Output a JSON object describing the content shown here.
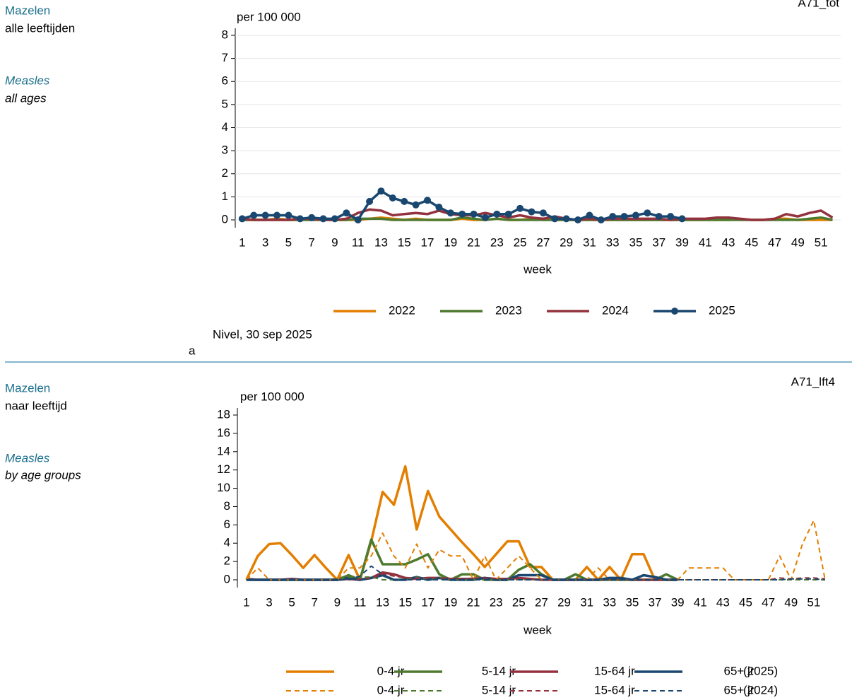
{
  "chart_data": [
    {
      "type": "line",
      "code": "A71_tot",
      "side_title_nl": "Mazelen",
      "side_subtitle_nl": "alle leeftijden",
      "side_title_en": "Measles",
      "side_subtitle_en": "all ages",
      "y_label": "per 100 000",
      "x_label": "week",
      "source": "Nivel, 30 sep 2025",
      "panel_label": "a",
      "grid": true,
      "x": [
        1,
        2,
        3,
        4,
        5,
        6,
        7,
        8,
        9,
        10,
        11,
        12,
        13,
        14,
        15,
        16,
        17,
        18,
        19,
        20,
        21,
        22,
        23,
        24,
        25,
        26,
        27,
        28,
        29,
        30,
        31,
        32,
        33,
        34,
        35,
        36,
        37,
        38,
        39,
        40,
        41,
        42,
        43,
        44,
        45,
        46,
        47,
        48,
        49,
        50,
        51,
        52
      ],
      "xlim": [
        0.4,
        52.7
      ],
      "xticks": [
        1,
        3,
        5,
        7,
        9,
        11,
        13,
        15,
        17,
        19,
        21,
        23,
        25,
        27,
        29,
        31,
        33,
        35,
        37,
        39,
        41,
        43,
        45,
        47,
        49,
        51
      ],
      "ylim": [
        0,
        8
      ],
      "yticks": [
        0,
        1,
        2,
        3,
        4,
        5,
        6,
        7,
        8
      ],
      "series": [
        {
          "name": "2022",
          "color": "#e37e00",
          "values": [
            0,
            0,
            0,
            0.05,
            0,
            0,
            0.05,
            0,
            0,
            0,
            0,
            0.05,
            0.1,
            0.05,
            0,
            0.05,
            0,
            0,
            0,
            0.05,
            0,
            0,
            0.05,
            0,
            0,
            0.05,
            0,
            0,
            0,
            0,
            0,
            0,
            0,
            0,
            0,
            0,
            0,
            0,
            0,
            0,
            0,
            0,
            0,
            0.05,
            0,
            0,
            0.05,
            0.05,
            0,
            0,
            0,
            0
          ]
        },
        {
          "name": "2023",
          "color": "#4e7a2f",
          "values": [
            0,
            0,
            0,
            0,
            0,
            0,
            0,
            0,
            0,
            0,
            0.05,
            0.05,
            0.05,
            0,
            0,
            0,
            0,
            0,
            0,
            0.1,
            0.05,
            0,
            0.05,
            0,
            0,
            0,
            0,
            0,
            0,
            0,
            0,
            0,
            0,
            0,
            0,
            0,
            0,
            0,
            0,
            0,
            0,
            0,
            0,
            0,
            0,
            0,
            0,
            0,
            0,
            0.05,
            0.1,
            0
          ]
        },
        {
          "name": "2024",
          "color": "#93323e",
          "values": [
            0.05,
            0,
            0,
            0,
            0,
            0.05,
            0.05,
            0,
            0,
            0.05,
            0.3,
            0.45,
            0.4,
            0.2,
            0.25,
            0.3,
            0.25,
            0.4,
            0.25,
            0.2,
            0.2,
            0.3,
            0.2,
            0.1,
            0.2,
            0.1,
            0.05,
            0.15,
            0.05,
            0,
            0.05,
            0,
            0.05,
            0.05,
            0.05,
            0.05,
            0.05,
            0,
            0.05,
            0.05,
            0.05,
            0.1,
            0.1,
            0.05,
            0,
            0,
            0.05,
            0.25,
            0.15,
            0.3,
            0.4,
            0.1
          ]
        },
        {
          "name": "2025",
          "color": "#1a476f",
          "markers": true,
          "values": [
            0.05,
            0.2,
            0.2,
            0.2,
            0.2,
            0.05,
            0.1,
            0.05,
            0.05,
            0.3,
            0,
            0.8,
            1.25,
            0.95,
            0.8,
            0.65,
            0.85,
            0.55,
            0.3,
            0.25,
            0.25,
            0.1,
            0.25,
            0.25,
            0.5,
            0.35,
            0.3,
            0.05,
            0.05,
            0,
            0.2,
            0,
            0.15,
            0.15,
            0.2,
            0.3,
            0.15,
            0.15,
            0.05,
            null,
            null,
            null,
            null,
            null,
            null,
            null,
            null,
            null,
            null,
            null,
            null,
            null
          ]
        }
      ]
    },
    {
      "type": "line",
      "code": "A71_lft4",
      "side_title_nl": "Mazelen",
      "side_subtitle_nl": "naar leeftijd",
      "side_title_en": "Measles",
      "side_subtitle_en": "by age groups",
      "y_label": "per 100 000",
      "x_label": "week",
      "grid": false,
      "legend_row_labels": [
        "(2025)",
        "(2024)"
      ],
      "x": [
        1,
        2,
        3,
        4,
        5,
        6,
        7,
        8,
        9,
        10,
        11,
        12,
        13,
        14,
        15,
        16,
        17,
        18,
        19,
        20,
        21,
        22,
        23,
        24,
        25,
        26,
        27,
        28,
        29,
        30,
        31,
        32,
        33,
        34,
        35,
        36,
        37,
        38,
        39,
        40,
        41,
        42,
        43,
        44,
        45,
        46,
        47,
        48,
        49,
        50,
        51,
        52
      ],
      "xlim": [
        0.2,
        53
      ],
      "xticks": [
        1,
        3,
        5,
        7,
        9,
        11,
        13,
        15,
        17,
        19,
        21,
        23,
        25,
        27,
        29,
        31,
        33,
        35,
        37,
        39,
        41,
        43,
        45,
        47,
        49,
        51
      ],
      "ylim": [
        0,
        18
      ],
      "yticks": [
        0,
        2,
        4,
        6,
        8,
        10,
        12,
        14,
        16,
        18
      ],
      "series": [
        {
          "name": "0-4 jr",
          "color": "#e37e00",
          "values": [
            0,
            2.6,
            3.9,
            4.0,
            2.7,
            1.3,
            2.7,
            1.3,
            0,
            2.7,
            0,
            4.2,
            9.6,
            8.2,
            12.4,
            5.5,
            9.7,
            6.9,
            5.5,
            4.1,
            2.8,
            1.4,
            2.8,
            4.2,
            4.2,
            1.4,
            1.4,
            0,
            0,
            0,
            1.4,
            0,
            1.4,
            0,
            2.8,
            2.8,
            0,
            0,
            0,
            null,
            null,
            null,
            null,
            null,
            null,
            null,
            null,
            null,
            null,
            null,
            null,
            null
          ]
        },
        {
          "name": "5-14 jr",
          "color": "#4e7a2f",
          "values": [
            0,
            0,
            0,
            0,
            0,
            0,
            0,
            0,
            0,
            0.5,
            0,
            4.4,
            1.7,
            1.7,
            1.7,
            2.2,
            2.8,
            0.6,
            0,
            0.6,
            0.6,
            0,
            0,
            0,
            1.1,
            1.7,
            0.6,
            0,
            0,
            0.6,
            0,
            0,
            0,
            0,
            0,
            0,
            0,
            0.6,
            0,
            null,
            null,
            null,
            null,
            null,
            null,
            null,
            null,
            null,
            null,
            null,
            null,
            null
          ]
        },
        {
          "name": "15-64 jr",
          "color": "#93323e",
          "values": [
            0.1,
            0,
            0,
            0,
            0.1,
            0,
            0,
            0,
            0,
            0.1,
            0,
            0.2,
            0.8,
            0.6,
            0.2,
            0.1,
            0.2,
            0.2,
            0.1,
            0.1,
            0.1,
            0.2,
            0.1,
            0.1,
            0.2,
            0.1,
            0,
            0,
            0,
            0,
            0,
            0,
            0.1,
            0.1,
            0,
            0,
            0,
            0,
            0,
            null,
            null,
            null,
            null,
            null,
            null,
            null,
            null,
            null,
            null,
            null,
            null,
            null
          ]
        },
        {
          "name": "65+ jr",
          "color": "#1a476f",
          "values": [
            0,
            0,
            0,
            0,
            0,
            0,
            0,
            0,
            0,
            0.2,
            0,
            0.2,
            0.5,
            0,
            0,
            0.3,
            0,
            0.2,
            0,
            0,
            0,
            0.2,
            0,
            0,
            0.5,
            0.5,
            0.5,
            0,
            0,
            0,
            0,
            0,
            0.2,
            0.2,
            0,
            0.5,
            0.3,
            0,
            0,
            null,
            null,
            null,
            null,
            null,
            null,
            null,
            null,
            null,
            null,
            null,
            null,
            null
          ]
        },
        {
          "name": "0-4 jr",
          "color": "#e37e00",
          "dash": true,
          "values": [
            0,
            1.3,
            0,
            0,
            0,
            0,
            0,
            0,
            0,
            1.3,
            1.3,
            2.6,
            5.1,
            2.6,
            1.3,
            3.9,
            1.3,
            3.3,
            2.6,
            2.6,
            0,
            2.6,
            0,
            1.3,
            2.6,
            1.3,
            0,
            0,
            0,
            0,
            0,
            1.3,
            0,
            0,
            0,
            0,
            0,
            0,
            0,
            1.3,
            1.3,
            1.3,
            1.3,
            0,
            0,
            0,
            0,
            2.6,
            0,
            3.9,
            6.5,
            0
          ]
        },
        {
          "name": "5-14 jr",
          "color": "#4e7a2f",
          "dash": true,
          "values": [
            0,
            0,
            0,
            0,
            0,
            0,
            0,
            0,
            0,
            0.3,
            0.3,
            0.3,
            0,
            0,
            0,
            0.3,
            0,
            0.3,
            0,
            0,
            0,
            0,
            0,
            0,
            0,
            0,
            0,
            0,
            0,
            0,
            0,
            0,
            0,
            0,
            0,
            0,
            0,
            0,
            0,
            0,
            0,
            0,
            0,
            0,
            0,
            0,
            0,
            0,
            0,
            0,
            0,
            0
          ]
        },
        {
          "name": "15-64 jr",
          "color": "#93323e",
          "dash": true,
          "values": [
            0,
            0,
            0,
            0,
            0,
            0,
            0,
            0,
            0,
            0,
            0.1,
            0.2,
            0.6,
            0.4,
            0.2,
            0.2,
            0.2,
            0.2,
            0.1,
            0.1,
            0.2,
            0.2,
            0.1,
            0.1,
            0.1,
            0,
            0,
            0,
            0,
            0,
            0,
            0,
            0,
            0,
            0,
            0,
            0,
            0,
            0,
            0,
            0,
            0,
            0,
            0,
            0,
            0,
            0,
            0.2,
            0.1,
            0.2,
            0.2,
            0.1
          ]
        },
        {
          "name": "65+ jr",
          "color": "#1a476f",
          "dash": true,
          "values": [
            0,
            0,
            0,
            0,
            0,
            0,
            0,
            0,
            0,
            0,
            0.4,
            1.5,
            0.6,
            0,
            0,
            0,
            0,
            0,
            0,
            0,
            0,
            0,
            0,
            0,
            0,
            0,
            0,
            0,
            0,
            0,
            0,
            0,
            0,
            0,
            0,
            0,
            0,
            0,
            0,
            0,
            0,
            0,
            0,
            0,
            0,
            0,
            0,
            0,
            0.1,
            0.1,
            0.1,
            0
          ]
        }
      ]
    }
  ]
}
